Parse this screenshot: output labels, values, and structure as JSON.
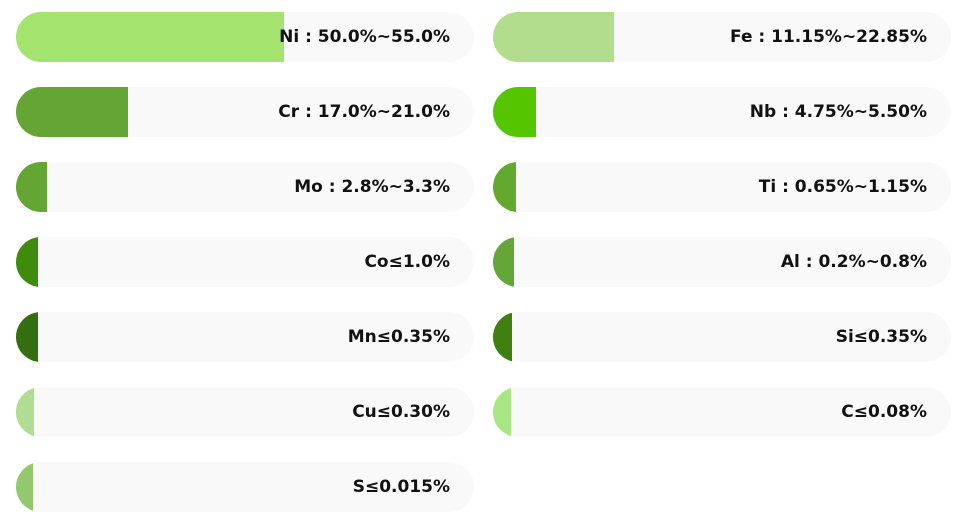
{
  "chart_data": {
    "type": "bar",
    "orientation": "horizontal",
    "categories": [
      "Ni : 50.0%~55.0%",
      "Cr : 17.0%~21.0%",
      "Mo : 2.8%~3.3%",
      "Co≤1.0%",
      "Mn≤0.35%",
      "Cu≤0.30%",
      "S≤0.015%",
      "Fe : 11.15%~22.85%",
      "Nb : 4.75%~5.50%",
      "Ti : 0.65%~1.15%",
      "Al : 0.2%~0.8%",
      "Si≤0.35%",
      "C≤0.08%"
    ],
    "values": [
      58.5,
      24.5,
      6.8,
      4.8,
      4.8,
      3.9,
      3.7,
      26.4,
      9.4,
      5.0,
      4.6,
      4.1,
      3.9
    ],
    "colors": [
      "#a3e36e",
      "#64a533",
      "#64a533",
      "#3f8b0c",
      "#356e0f",
      "#b1dc91",
      "#94c86e",
      "#b2dd8c",
      "#55c500",
      "#62a92d",
      "#66a538",
      "#3e7f10",
      "#a7e680"
    ],
    "xlim": [
      0,
      100
    ]
  }
}
